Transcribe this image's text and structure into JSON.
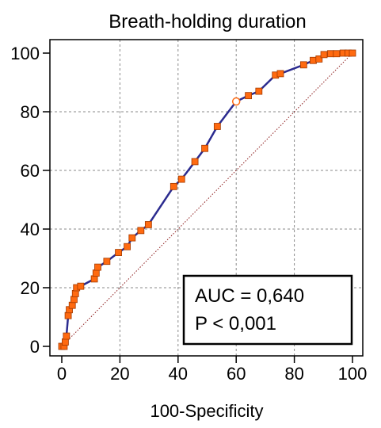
{
  "chart_data": {
    "type": "line",
    "title": "Breath-holding duration",
    "xlabel": "100-Specificity",
    "ylabel": "",
    "xlim": [
      0,
      100
    ],
    "ylim": [
      0,
      100
    ],
    "xticks": [
      "0",
      "20",
      "40",
      "60",
      "80",
      "100"
    ],
    "yticks": [
      "0",
      "20",
      "40",
      "60",
      "80",
      "100"
    ],
    "grid": true,
    "series": [
      {
        "type": "line",
        "color": "#2b2b8f",
        "marker_color": "#ff6a10",
        "points": [
          [
            0,
            0
          ],
          [
            0.8,
            0
          ],
          [
            1.2,
            1.5
          ],
          [
            1.6,
            3.5
          ],
          [
            2.2,
            10.5
          ],
          [
            2.6,
            12.5
          ],
          [
            3.6,
            14
          ],
          [
            4.2,
            16
          ],
          [
            4.7,
            18
          ],
          [
            5.1,
            20
          ],
          [
            6.5,
            20.5
          ],
          [
            11.2,
            23
          ],
          [
            11.8,
            25
          ],
          [
            12.4,
            27
          ],
          [
            15.5,
            29
          ],
          [
            19.5,
            32
          ],
          [
            22.5,
            34
          ],
          [
            24.2,
            37
          ],
          [
            27.2,
            39.5
          ],
          [
            29.8,
            41.5
          ],
          [
            38.5,
            54.5
          ],
          [
            41.2,
            57
          ],
          [
            45.8,
            63
          ],
          [
            49.2,
            67.5
          ],
          [
            53.5,
            75
          ],
          [
            60,
            83.5
          ],
          [
            64.2,
            85.5
          ],
          [
            67.8,
            87
          ],
          [
            73.5,
            92.5
          ],
          [
            75.2,
            93
          ],
          [
            83.2,
            96
          ],
          [
            86.5,
            97.5
          ],
          [
            88.5,
            98
          ],
          [
            90.2,
            99.5
          ],
          [
            92.5,
            99.8
          ],
          [
            94.5,
            99.8
          ],
          [
            96.8,
            100
          ],
          [
            98.5,
            100
          ],
          [
            100,
            100
          ]
        ],
        "open_marker_point": [
          60,
          83.5
        ]
      },
      {
        "type": "reference",
        "style": "dotted",
        "color": "#8b1a1a",
        "points": [
          [
            0,
            0
          ],
          [
            100,
            100
          ]
        ]
      }
    ],
    "annotation": {
      "lines": [
        "AUC = 0,640",
        "P < 0,001"
      ]
    }
  }
}
